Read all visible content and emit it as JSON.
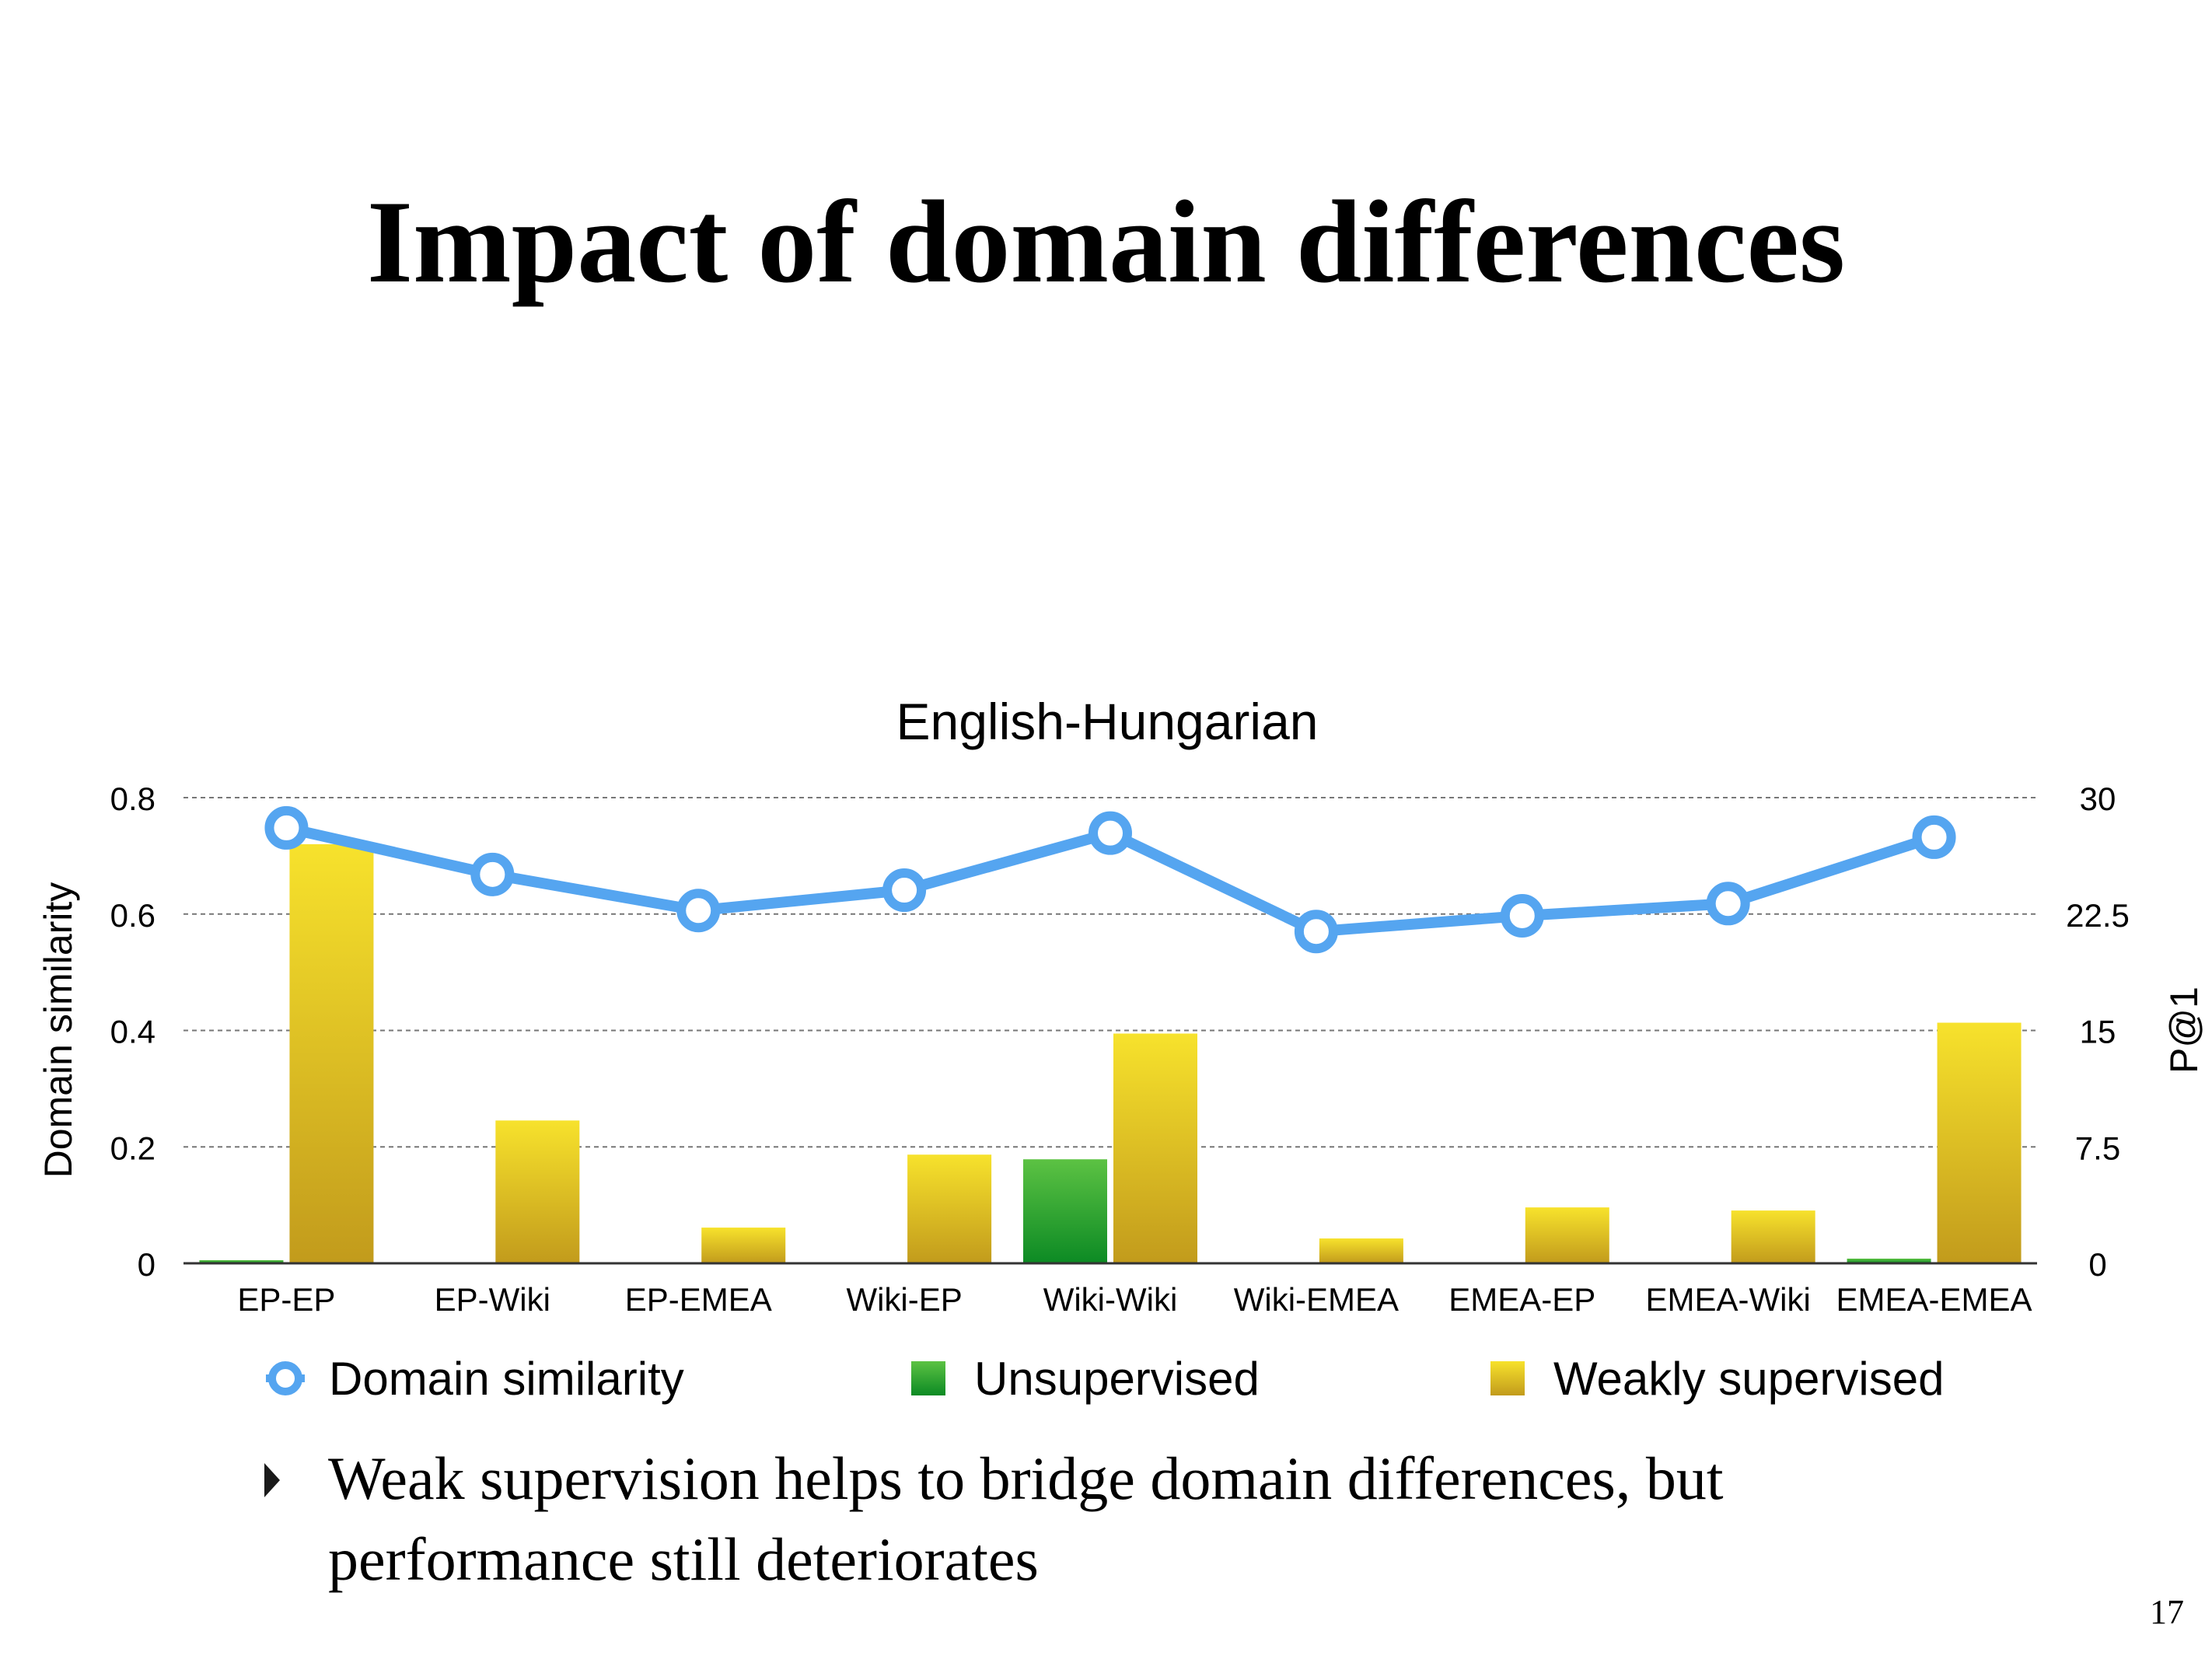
{
  "slide": {
    "title": "Impact of domain differences",
    "bullet": "Weak supervision helps to bridge domain differences, but performance still deteriorates",
    "page_number": "17"
  },
  "chart_data": {
    "type": "bar",
    "title": "English-Hungarian",
    "categories": [
      "EP-EP",
      "EP-Wiki",
      "EP-EMEA",
      "Wiki-EP",
      "Wiki-Wiki",
      "Wiki-EMEA",
      "EMEA-EP",
      "EMEA-Wiki",
      "EMEA-EMEA"
    ],
    "ylabel": "Domain similarity",
    "ylabel_right": "P@1",
    "ylim": [
      0,
      0.8
    ],
    "ylim_right": [
      0,
      30
    ],
    "yticks": [
      "0",
      "0.2",
      "0.4",
      "0.6",
      "0.8"
    ],
    "yticks_right": [
      "0",
      "7.5",
      "15",
      "22.5",
      "30"
    ],
    "grid": true,
    "legend_position": "bottom",
    "series": [
      {
        "name": "Domain similarity",
        "kind": "line",
        "axis": "left",
        "color": "#55a5f0",
        "values": [
          0.748,
          0.668,
          0.606,
          0.641,
          0.739,
          0.57,
          0.597,
          0.618,
          0.732
        ]
      },
      {
        "name": "Unsupervised",
        "kind": "bar",
        "axis": "right",
        "color_top": "#5cc243",
        "color_bottom": "#0c8a24",
        "values": [
          0.2,
          0,
          0,
          0,
          6.7,
          0,
          0,
          0,
          0.3
        ]
      },
      {
        "name": "Weakly supervised",
        "kind": "bar",
        "axis": "right",
        "color_top": "#f7e22c",
        "color_bottom": "#c29b1c",
        "values": [
          27.0,
          9.2,
          2.3,
          7.0,
          14.8,
          1.6,
          3.6,
          3.4,
          15.5
        ]
      }
    ]
  }
}
